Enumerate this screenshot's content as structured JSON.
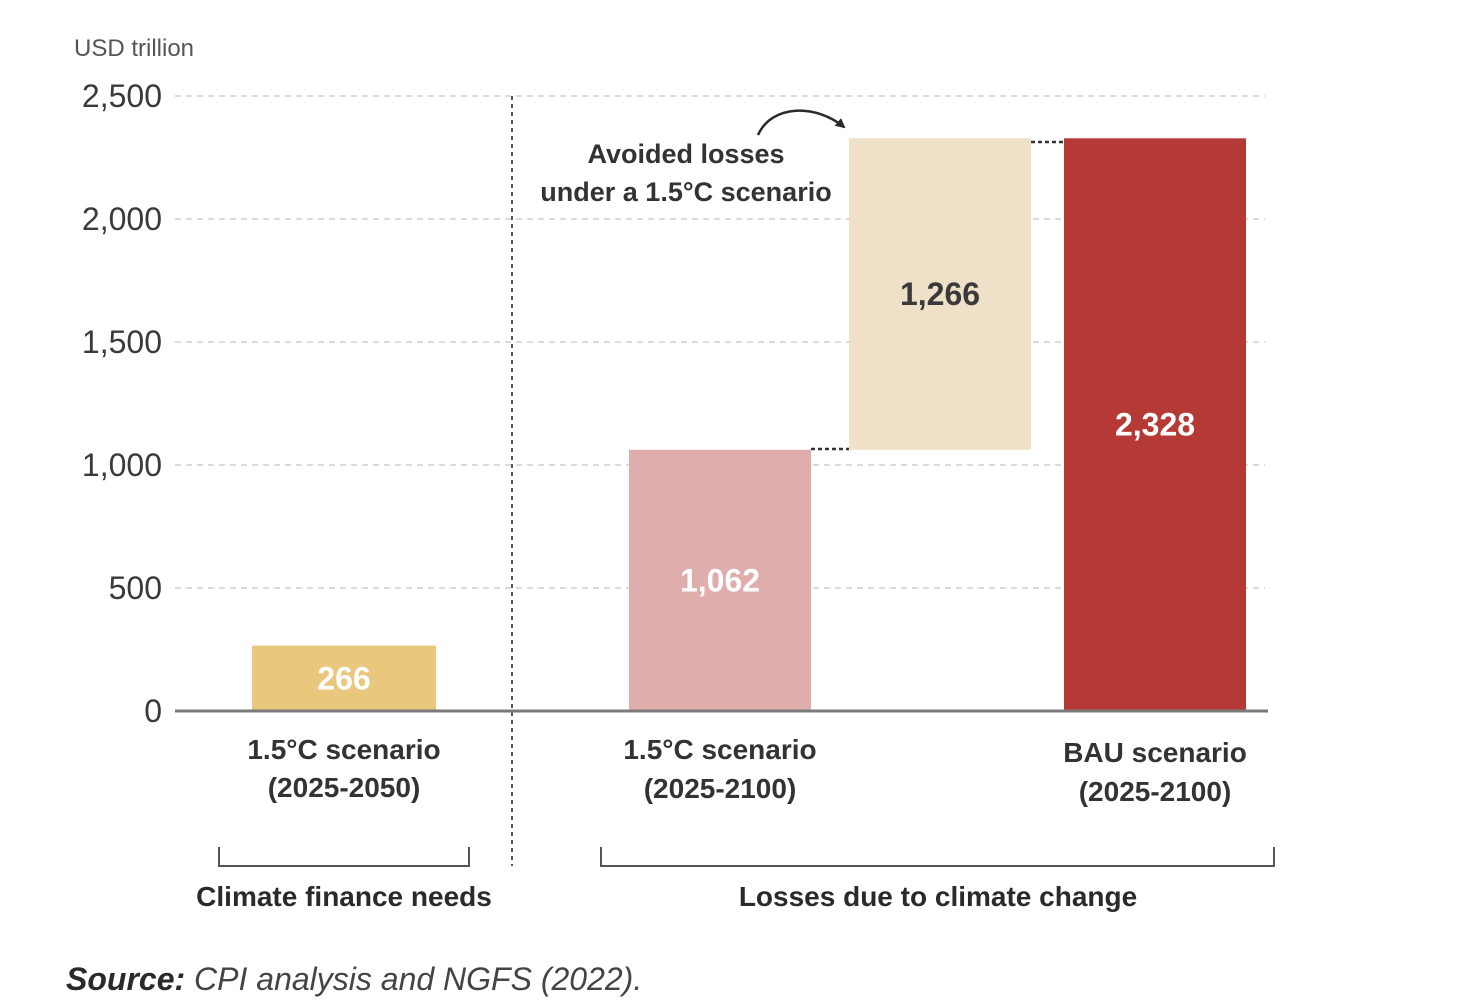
{
  "chart_data": {
    "type": "bar",
    "subtype": "waterfall",
    "unit_label": "USD trillion",
    "ylim": [
      0,
      2500
    ],
    "yticks": [
      0,
      500,
      1000,
      1500,
      2000,
      2500
    ],
    "ytick_labels": [
      "0",
      "500",
      "1,000",
      "1,500",
      "2,000",
      "2,500"
    ],
    "grid": true,
    "bars": [
      {
        "category_line1": "1.5°C scenario",
        "category_line2": "(2025-2050)",
        "base": 0,
        "value": 266,
        "label": "266",
        "color": "#e9c77d",
        "label_color": "#ffffff"
      },
      {
        "category_line1": "1.5°C scenario",
        "category_line2": "(2025-2100)",
        "base": 0,
        "value": 1062,
        "label": "1,062",
        "color": "#e0adad",
        "label_color": "#ffffff"
      },
      {
        "category_line1": "",
        "category_line2": "",
        "base": 1062,
        "value": 1266,
        "label": "1,266",
        "color": "#efe0c8",
        "label_color": "#3a3a3a"
      },
      {
        "category_line1": "BAU scenario",
        "category_line2": "(2025-2100)",
        "base": 0,
        "value": 2328,
        "label": "2,328",
        "color": "#b53a36",
        "label_color": "#ffffff"
      }
    ],
    "annotation": {
      "line1": "Avoided losses",
      "line2": "under a 1.5°C scenario"
    },
    "groups": [
      {
        "label": "Climate finance needs"
      },
      {
        "label": "Losses due to climate change"
      }
    ]
  },
  "source": {
    "lead": "Source:",
    "text": " CPI analysis and NGFS (2022)."
  }
}
